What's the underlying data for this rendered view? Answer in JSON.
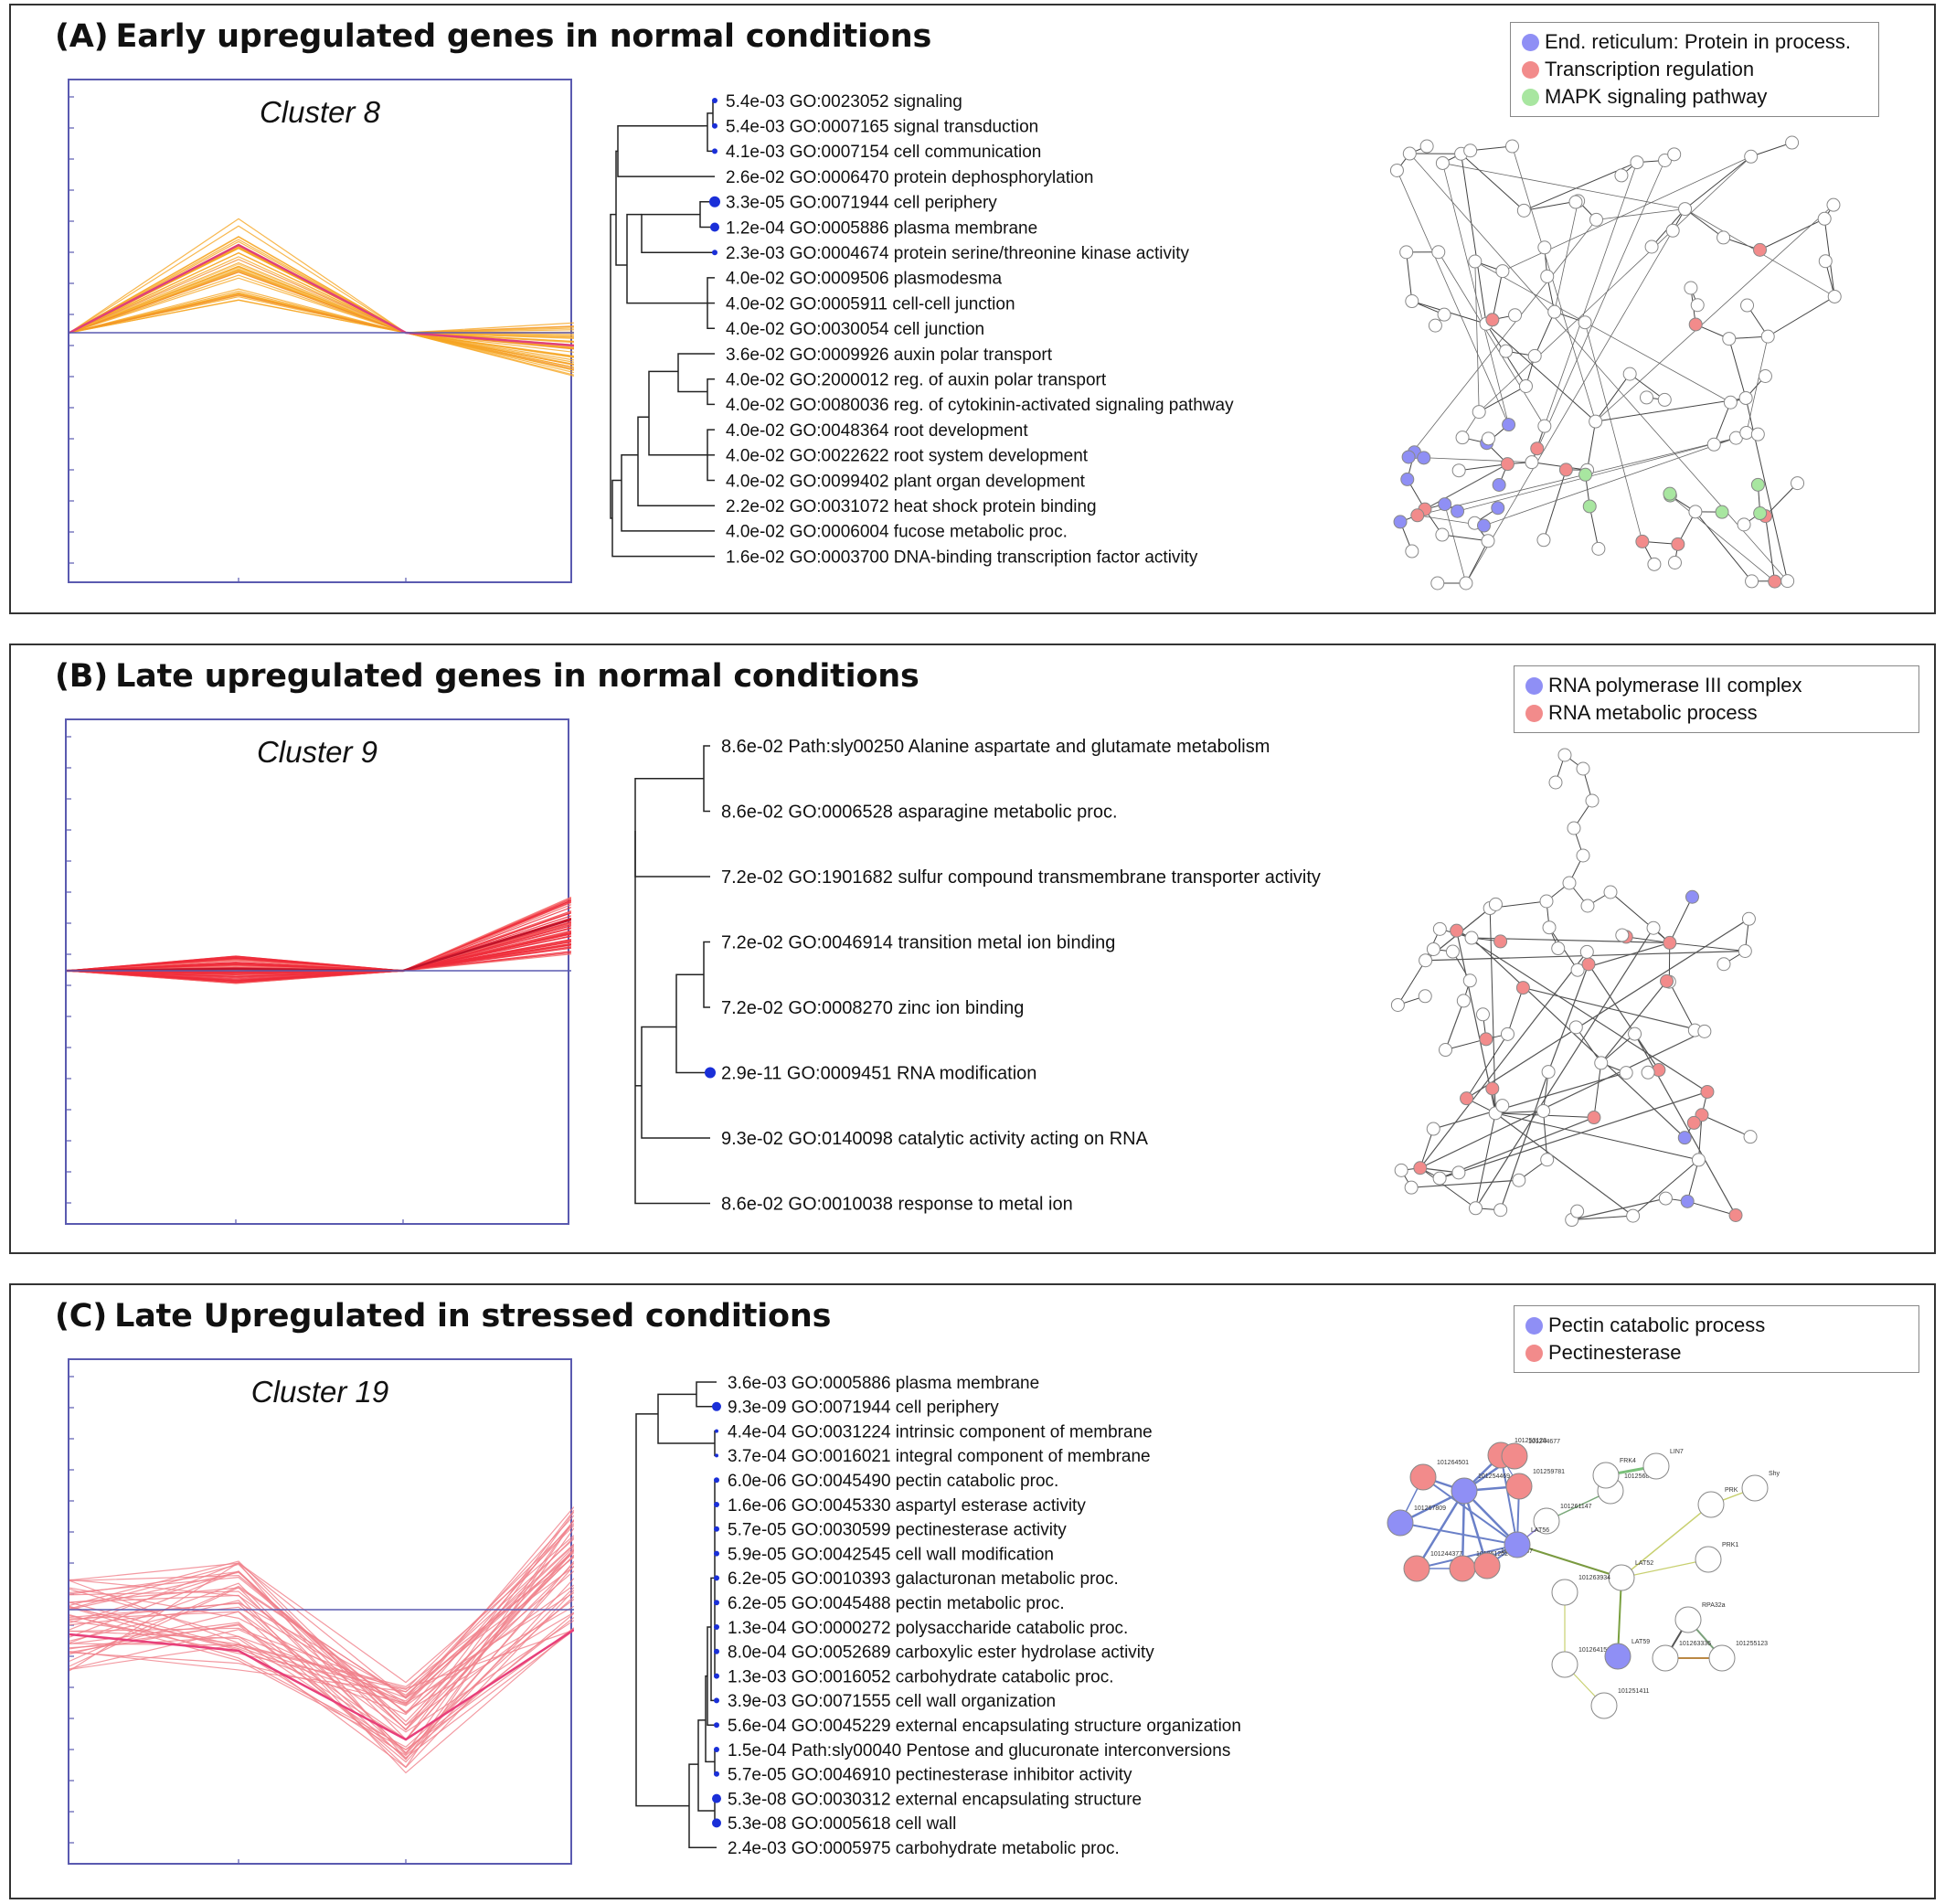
{
  "colors": {
    "blue": "#8f8ff5",
    "red": "#f28b8b",
    "green": "#a8e6a0",
    "axis": "#5a5ab0",
    "dendro_dot": "#1a2fd8"
  },
  "panels": [
    {
      "letter": "(A)",
      "title": "Early upregulated genes in normal conditions",
      "cluster": "Cluster 8",
      "legend": [
        {
          "label": "End. reticulum: Protein in process.",
          "color": "blue"
        },
        {
          "label": "Transcription regulation",
          "color": "red"
        },
        {
          "label": "MAPK signaling pathway",
          "color": "green"
        }
      ],
      "terms": [
        "5.4e-03 GO:0023052 signaling",
        "5.4e-03 GO:0007165 signal transduction",
        "4.1e-03 GO:0007154 cell communication",
        "2.6e-02 GO:0006470 protein dephosphorylation",
        "3.3e-05 GO:0071944 cell periphery",
        "1.2e-04 GO:0005886 plasma membrane",
        "2.3e-03 GO:0004674 protein serine/threonine kinase activity",
        "4.0e-02 GO:0009506 plasmodesma",
        "4.0e-02 GO:0005911 cell-cell junction",
        "4.0e-02 GO:0030054 cell junction",
        "3.6e-02 GO:0009926 auxin polar transport",
        "4.0e-02 GO:2000012 reg. of auxin polar transport",
        "4.0e-02 GO:0080036 reg. of cytokinin-activated signaling pathway",
        "4.0e-02 GO:0048364 root development",
        "4.0e-02 GO:0022622 root system development",
        "4.0e-02 GO:0099402 plant organ development",
        "2.2e-02 GO:0031072 heat shock protein binding",
        "4.0e-02 GO:0006004 fucose metabolic proc.",
        "1.6e-02 GO:0003700 DNA-binding transcription factor activity"
      ]
    },
    {
      "letter": "(B)",
      "title": "Late upregulated genes in normal conditions",
      "cluster": "Cluster 9",
      "legend": [
        {
          "label": "RNA polymerase III complex",
          "color": "blue"
        },
        {
          "label": "RNA metabolic process",
          "color": "red"
        }
      ],
      "terms": [
        "8.6e-02 Path:sly00250 Alanine aspartate and glutamate metabolism",
        "8.6e-02 GO:0006528 asparagine metabolic proc.",
        "7.2e-02 GO:1901682 sulfur compound transmembrane transporter activity",
        "7.2e-02 GO:0046914 transition metal ion binding",
        "7.2e-02 GO:0008270 zinc ion binding",
        "2.9e-11 GO:0009451 RNA modification",
        "9.3e-02 GO:0140098 catalytic activity acting on RNA",
        "8.6e-02 GO:0010038 response to metal ion"
      ]
    },
    {
      "letter": "(C)",
      "title": "Late Upregulated in stressed conditions",
      "cluster": "Cluster 19",
      "legend": [
        {
          "label": "Pectin catabolic process",
          "color": "blue"
        },
        {
          "label": "Pectinesterase",
          "color": "red"
        }
      ],
      "terms": [
        "3.6e-03 GO:0005886 plasma membrane",
        "9.3e-09 GO:0071944 cell periphery",
        "4.4e-04 GO:0031224 intrinsic component of membrane",
        "3.7e-04 GO:0016021 integral component of membrane",
        "6.0e-06 GO:0045490 pectin catabolic proc.",
        "1.6e-06 GO:0045330 aspartyl esterase activity",
        "5.7e-05 GO:0030599 pectinesterase activity",
        "5.9e-05 GO:0042545 cell wall modification",
        "6.2e-05 GO:0010393 galacturonan metabolic proc.",
        "6.2e-05 GO:0045488 pectin metabolic proc.",
        "1.3e-04 GO:0000272 polysaccharide catabolic proc.",
        "8.0e-04 GO:0052689 carboxylic ester hydrolase activity",
        "1.3e-03 GO:0016052 carbohydrate catabolic proc.",
        "3.9e-03 GO:0071555 cell wall organization",
        "5.6e-04 GO:0045229 external encapsulating structure organization",
        "1.5e-04 Path:sly00040 Pentose and glucuronate interconversions",
        "5.7e-05 GO:0046910 pectinesterase inhibitor activity",
        "5.3e-08 GO:0030312 external encapsulating structure",
        "5.3e-08 GO:0005618 cell wall",
        "2.4e-03 GO:0005975 carbohydrate metabolic proc."
      ],
      "network_labels": [
        "101253120",
        "101244677",
        "101264501",
        "101259781",
        "101254469",
        "101267809",
        "101244377",
        "101261202",
        "101260967",
        "101261147",
        "101256848",
        "FRK4",
        "LIN7",
        "LAT56",
        "LAT52",
        "PRK",
        "Shy",
        "PRK1",
        "101263934",
        "101264158",
        "101251411",
        "LAT59",
        "RPA32a",
        "101263336",
        "101255123"
      ]
    }
  ]
}
